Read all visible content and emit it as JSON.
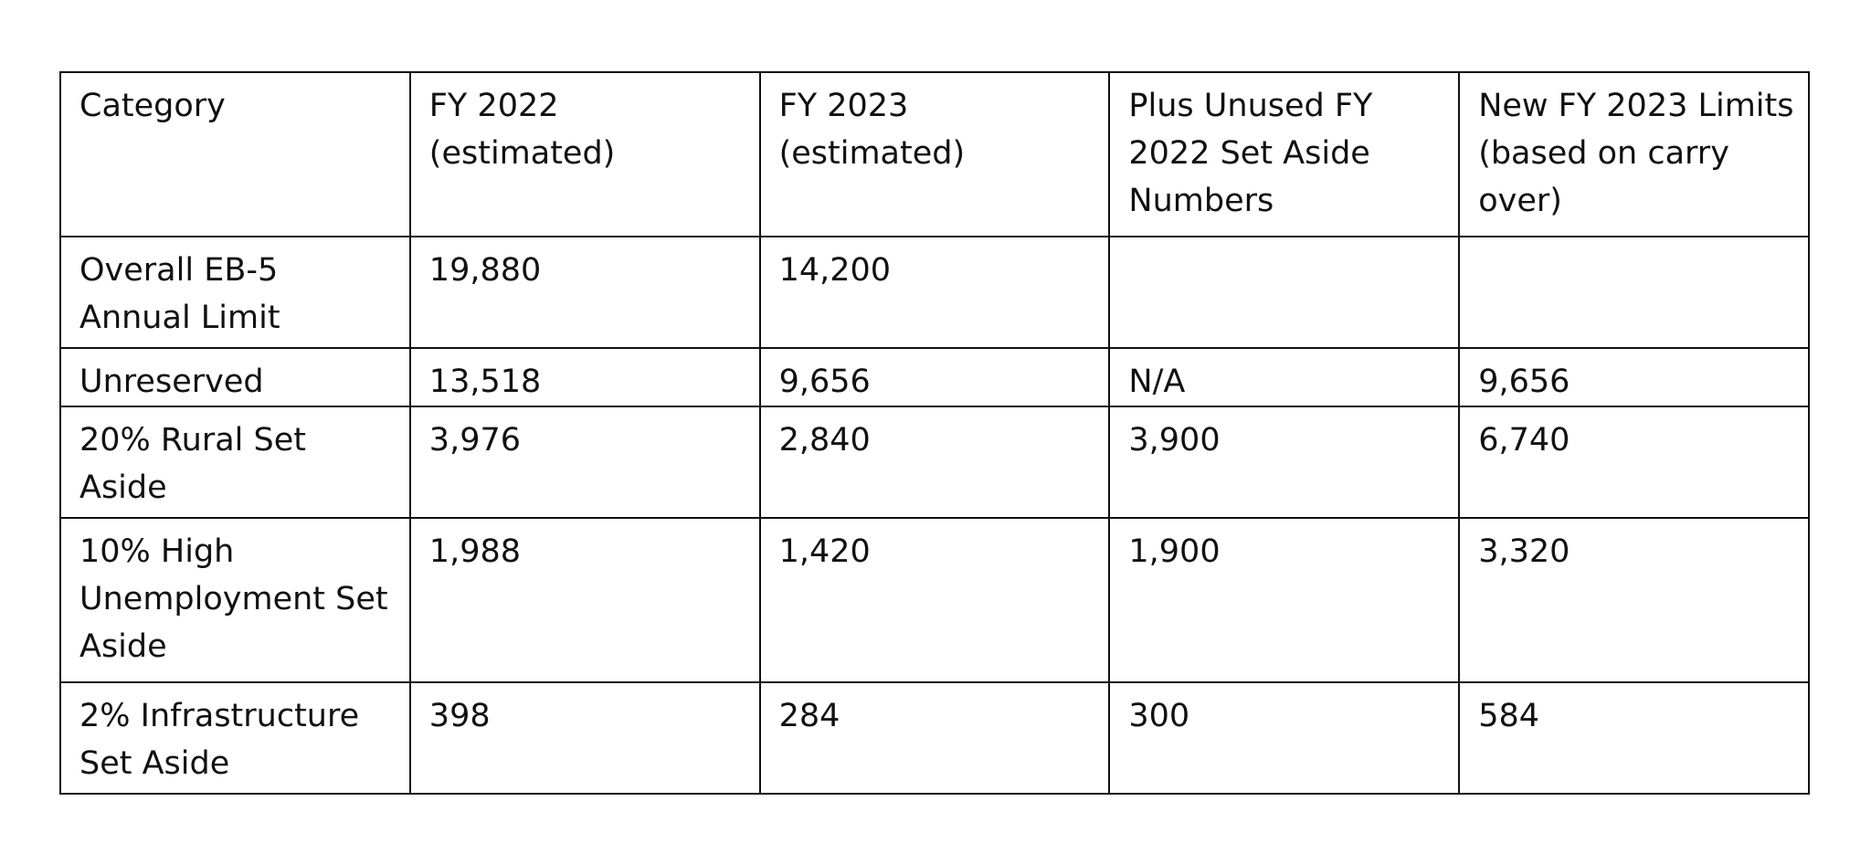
{
  "table": {
    "headers": [
      "Category",
      "FY 2022\n(estimated)",
      "FY 2023\n(estimated)",
      "Plus Unused FY\n2022 Set Aside\nNumbers",
      "New FY 2023 Limits\n(based on carry\nover)"
    ],
    "rows": [
      [
        "Overall EB-5\nAnnual Limit",
        "19,880",
        "14,200",
        "",
        ""
      ],
      [
        "Unreserved",
        "13,518",
        "9,656",
        "N/A",
        "9,656"
      ],
      [
        "20% Rural Set\nAside",
        "3,976",
        "2,840",
        "3,900",
        "6,740"
      ],
      [
        "10% High\nUnemployment Set\nAside",
        "1,988",
        "1,420",
        "1,900",
        "3,320"
      ],
      [
        "2% Infrastructure\nSet Aside",
        "398",
        "284",
        "300",
        "584"
      ]
    ]
  }
}
